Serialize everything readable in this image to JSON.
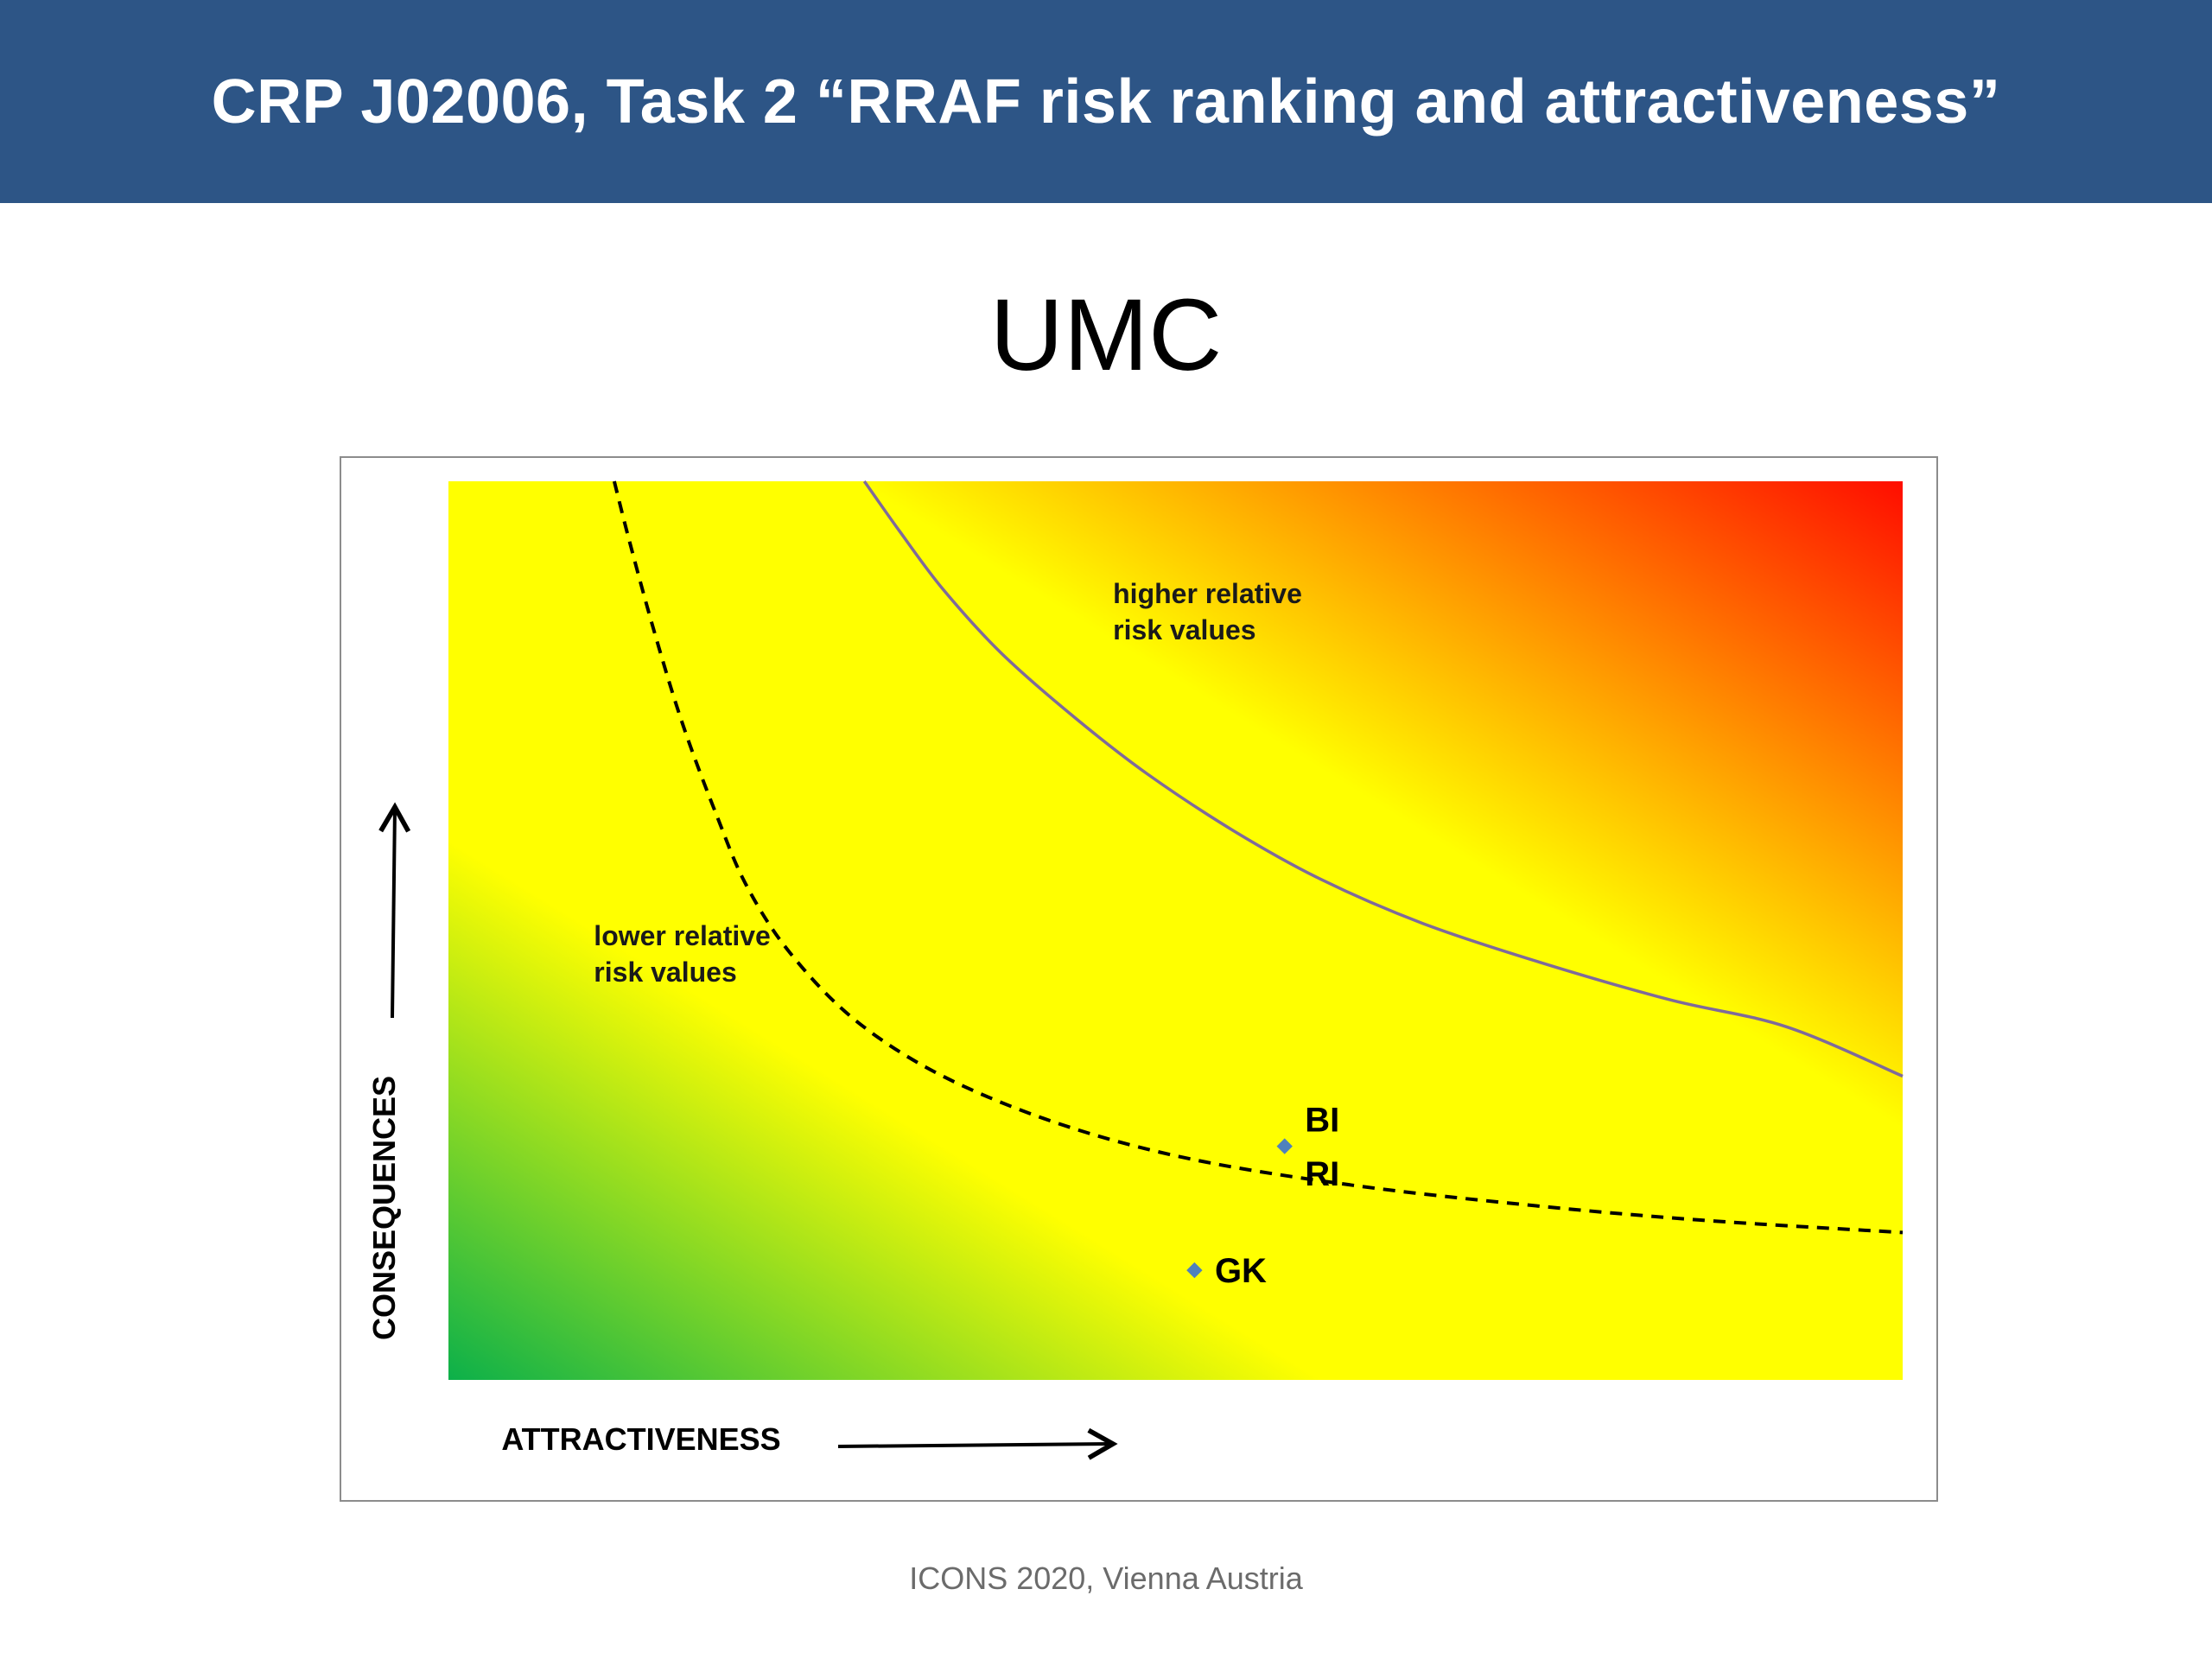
{
  "header": {
    "title": "CRP J02006, Task 2 “RRAF risk ranking and attractiveness”"
  },
  "slide": {
    "subtitle": "UMC"
  },
  "footer": {
    "text": "ICONS 2020, Vienna Austria"
  },
  "colors": {
    "header_bg": "#2d5586",
    "low_risk": "#0cb04a",
    "mid": "#ffff00",
    "high_risk": "#ff0d00",
    "marker": "#4f81bd"
  },
  "chart_data": {
    "type": "scatter",
    "xlabel": "ATTRACTIVENESS",
    "ylabel": "CONSEQUENCES",
    "xlim": [
      0,
      100
    ],
    "ylim": [
      0,
      100
    ],
    "grid": false,
    "background": "gradient green (bottom-left) to yellow to red (top-right)",
    "annotations": [
      {
        "text_lines": [
          "higher relative",
          "risk values"
        ],
        "x": 45.7,
        "y": 87.6
      },
      {
        "text_lines": [
          "lower relative",
          "risk values"
        ],
        "x": 10.0,
        "y": 49.5
      }
    ],
    "curves": [
      {
        "style": "dashed",
        "color": "#000000",
        "points": [
          [
            11.4,
            100
          ],
          [
            12.5,
            93
          ],
          [
            14.2,
            83
          ],
          [
            16.1,
            73
          ],
          [
            18.4,
            63
          ],
          [
            20.5,
            55
          ],
          [
            23.5,
            47.5
          ],
          [
            28,
            40
          ],
          [
            34,
            33.8
          ],
          [
            42,
            28.5
          ],
          [
            51,
            24.6
          ],
          [
            62,
            21.7
          ],
          [
            74,
            19.5
          ],
          [
            86,
            17.8
          ],
          [
            100,
            16.4
          ]
        ]
      },
      {
        "style": "solid",
        "color": "#7f6a9a",
        "points": [
          [
            28.6,
            100
          ],
          [
            31,
            94.5
          ],
          [
            34,
            88
          ],
          [
            38,
            80.9
          ],
          [
            43,
            73.8
          ],
          [
            48,
            67.5
          ],
          [
            54,
            61.1
          ],
          [
            60,
            55.7
          ],
          [
            67,
            50.8
          ],
          [
            75,
            46.5
          ],
          [
            84,
            42.3
          ],
          [
            92,
            39.3
          ],
          [
            100,
            33.8
          ]
        ]
      }
    ],
    "points": [
      {
        "label": "BI",
        "x": 57.5,
        "y": 26.0,
        "label_dx": 1.4,
        "label_dy": 3.0
      },
      {
        "label": "RI",
        "x": 57.5,
        "y": 26.0,
        "label_dx": 1.4,
        "label_dy": -3.0
      },
      {
        "label": "GK",
        "x": 51.3,
        "y": 12.2,
        "label_dx": 1.4,
        "label_dy": 0
      }
    ]
  }
}
